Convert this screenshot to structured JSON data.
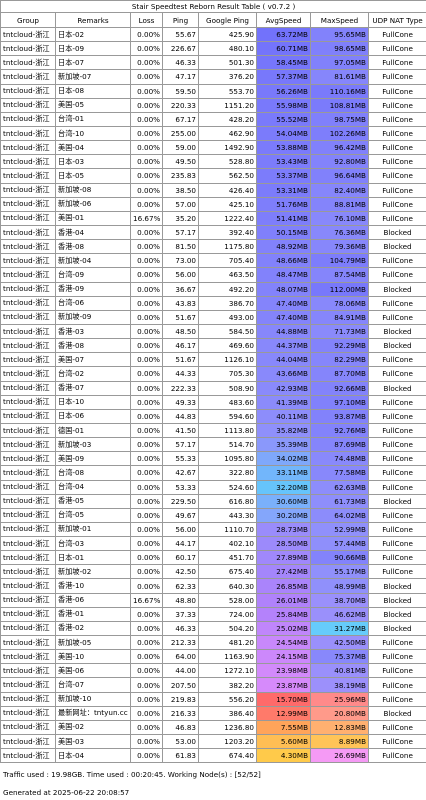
{
  "title": "Stair Speedtest Reborn Result Table ( v0.7.2 )",
  "table": {
    "header": [
      "Group",
      "Remarks",
      "Loss",
      "Ping",
      "Google Ping",
      "AvgSpeed",
      "MaxSpeed",
      "UDP NAT Type"
    ],
    "rows": [
      [
        "tntcloud-浙江",
        "日本-02",
        "0.00%",
        "55.67",
        "425.90",
        "63.72MB",
        "95.65MB",
        "FullCone"
      ],
      [
        "tntcloud-浙江",
        "日本-09",
        "0.00%",
        "226.67",
        "480.10",
        "60.71MB",
        "98.65MB",
        "FullCone"
      ],
      [
        "tntcloud-浙江",
        "日本-07",
        "0.00%",
        "46.33",
        "501.30",
        "58.45MB",
        "97.05MB",
        "FullCone"
      ],
      [
        "tntcloud-浙江",
        "新加坡-07",
        "0.00%",
        "47.17",
        "376.20",
        "57.37MB",
        "81.61MB",
        "FullCone"
      ],
      [
        "tntcloud-浙江",
        "日本-08",
        "0.00%",
        "59.50",
        "553.70",
        "56.26MB",
        "110.16MB",
        "FullCone"
      ],
      [
        "tntcloud-浙江",
        "美国-05",
        "0.00%",
        "220.33",
        "1151.20",
        "55.98MB",
        "108.81MB",
        "FullCone"
      ],
      [
        "tntcloud-浙江",
        "台湾-01",
        "0.00%",
        "67.17",
        "428.20",
        "55.52MB",
        "98.75MB",
        "FullCone"
      ],
      [
        "tntcloud-浙江",
        "台湾-10",
        "0.00%",
        "255.00",
        "462.90",
        "54.04MB",
        "102.26MB",
        "FullCone"
      ],
      [
        "tntcloud-浙江",
        "美国-04",
        "0.00%",
        "59.00",
        "1492.90",
        "53.88MB",
        "96.42MB",
        "FullCone"
      ],
      [
        "tntcloud-浙江",
        "日本-03",
        "0.00%",
        "49.50",
        "528.80",
        "53.43MB",
        "92.80MB",
        "FullCone"
      ],
      [
        "tntcloud-浙江",
        "日本-05",
        "0.00%",
        "235.83",
        "562.50",
        "53.37MB",
        "96.64MB",
        "FullCone"
      ],
      [
        "tntcloud-浙江",
        "新加坡-08",
        "0.00%",
        "38.50",
        "426.40",
        "53.31MB",
        "82.40MB",
        "FullCone"
      ],
      [
        "tntcloud-浙江",
        "新加坡-06",
        "0.00%",
        "57.00",
        "425.10",
        "51.76MB",
        "88.81MB",
        "FullCone"
      ],
      [
        "tntcloud-浙江",
        "美国-01",
        "16.67%",
        "35.20",
        "1222.40",
        "51.41MB",
        "76.10MB",
        "FullCone"
      ],
      [
        "tntcloud-浙江",
        "香港-04",
        "0.00%",
        "57.17",
        "392.40",
        "50.15MB",
        "76.36MB",
        "Blocked"
      ],
      [
        "tntcloud-浙江",
        "香港-08",
        "0.00%",
        "81.50",
        "1175.80",
        "48.92MB",
        "79.36MB",
        "Blocked"
      ],
      [
        "tntcloud-浙江",
        "新加坡-04",
        "0.00%",
        "73.00",
        "705.40",
        "48.66MB",
        "104.79MB",
        "FullCone"
      ],
      [
        "tntcloud-浙江",
        "台湾-09",
        "0.00%",
        "56.00",
        "463.50",
        "48.47MB",
        "87.54MB",
        "FullCone"
      ],
      [
        "tntcloud-浙江",
        "香港-09",
        "0.00%",
        "36.67",
        "492.20",
        "48.07MB",
        "112.00MB",
        "Blocked"
      ],
      [
        "tntcloud-浙江",
        "台湾-06",
        "0.00%",
        "43.83",
        "386.70",
        "47.40MB",
        "78.06MB",
        "FullCone"
      ],
      [
        "tntcloud-浙江",
        "新加坡-09",
        "0.00%",
        "51.67",
        "493.00",
        "47.40MB",
        "84.91MB",
        "FullCone"
      ],
      [
        "tntcloud-浙江",
        "香港-03",
        "0.00%",
        "48.50",
        "584.50",
        "44.88MB",
        "71.73MB",
        "Blocked"
      ],
      [
        "tntcloud-浙江",
        "香港-08",
        "0.00%",
        "46.17",
        "469.60",
        "44.37MB",
        "92.29MB",
        "Blocked"
      ],
      [
        "tntcloud-浙江",
        "美国-07",
        "0.00%",
        "51.67",
        "1126.10",
        "44.04MB",
        "82.29MB",
        "FullCone"
      ],
      [
        "tntcloud-浙江",
        "台湾-02",
        "0.00%",
        "44.33",
        "705.30",
        "43.66MB",
        "87.70MB",
        "FullCone"
      ],
      [
        "tntcloud-浙江",
        "香港-07",
        "0.00%",
        "222.33",
        "508.90",
        "42.93MB",
        "92.66MB",
        "Blocked"
      ],
      [
        "tntcloud-浙江",
        "日本-10",
        "0.00%",
        "49.33",
        "483.60",
        "41.39MB",
        "97.10MB",
        "FullCone"
      ],
      [
        "tntcloud-浙江",
        "日本-06",
        "0.00%",
        "44.83",
        "594.60",
        "40.11MB",
        "93.87MB",
        "FullCone"
      ],
      [
        "tntcloud-浙江",
        "德国-01",
        "0.00%",
        "41.50",
        "1113.80",
        "35.82MB",
        "92.76MB",
        "FullCone"
      ],
      [
        "tntcloud-浙江",
        "新加坡-03",
        "0.00%",
        "57.17",
        "514.70",
        "35.39MB",
        "87.69MB",
        "FullCone"
      ],
      [
        "tntcloud-浙江",
        "美国-09",
        "0.00%",
        "55.33",
        "1095.80",
        "34.02MB",
        "74.48MB",
        "FullCone"
      ],
      [
        "tntcloud-浙江",
        "台湾-08",
        "0.00%",
        "42.67",
        "322.80",
        "33.11MB",
        "77.58MB",
        "FullCone"
      ],
      [
        "tntcloud-浙江",
        "台湾-04",
        "0.00%",
        "53.33",
        "524.60",
        "32.20MB",
        "62.63MB",
        "FullCone"
      ],
      [
        "tntcloud-浙江",
        "香港-05",
        "0.00%",
        "229.50",
        "616.80",
        "30.60MB",
        "61.73MB",
        "Blocked"
      ],
      [
        "tntcloud-浙江",
        "台湾-05",
        "0.00%",
        "49.67",
        "443.30",
        "30.20MB",
        "64.02MB",
        "FullCone"
      ],
      [
        "tntcloud-浙江",
        "新加坡-01",
        "0.00%",
        "56.00",
        "1110.70",
        "28.73MB",
        "52.99MB",
        "FullCone"
      ],
      [
        "tntcloud-浙江",
        "台湾-03",
        "0.00%",
        "44.17",
        "402.10",
        "28.50MB",
        "57.44MB",
        "FullCone"
      ],
      [
        "tntcloud-浙江",
        "日本-01",
        "0.00%",
        "60.17",
        "451.70",
        "27.89MB",
        "90.66MB",
        "FullCone"
      ],
      [
        "tntcloud-浙江",
        "新加坡-02",
        "0.00%",
        "42.50",
        "675.40",
        "27.42MB",
        "55.17MB",
        "FullCone"
      ],
      [
        "tntcloud-浙江",
        "香港-10",
        "0.00%",
        "62.33",
        "640.30",
        "26.85MB",
        "48.99MB",
        "Blocked"
      ],
      [
        "tntcloud-浙江",
        "香港-06",
        "16.67%",
        "48.80",
        "528.00",
        "26.01MB",
        "38.70MB",
        "Blocked"
      ],
      [
        "tntcloud-浙江",
        "香港-01",
        "0.00%",
        "37.33",
        "724.00",
        "25.84MB",
        "46.62MB",
        "Blocked"
      ],
      [
        "tntcloud-浙江",
        "香港-02",
        "0.00%",
        "46.33",
        "504.20",
        "25.02MB",
        "31.27MB",
        "Blocked"
      ],
      [
        "tntcloud-浙江",
        "新加坡-05",
        "0.00%",
        "212.33",
        "481.20",
        "24.54MB",
        "42.50MB",
        "FullCone"
      ],
      [
        "tntcloud-浙江",
        "美国-10",
        "0.00%",
        "64.00",
        "1163.90",
        "24.15MB",
        "75.37MB",
        "FullCone"
      ],
      [
        "tntcloud-浙江",
        "美国-06",
        "0.00%",
        "44.00",
        "1272.10",
        "23.98MB",
        "40.81MB",
        "FullCone"
      ],
      [
        "tntcloud-浙江",
        "台湾-07",
        "0.00%",
        "207.50",
        "382.20",
        "23.87MB",
        "38.19MB",
        "FullCone"
      ],
      [
        "tntcloud-浙江",
        "新加坡-10",
        "0.00%",
        "219.83",
        "556.20",
        "15.70MB",
        "25.96MB",
        "FullCone"
      ],
      [
        "tntcloud-浙江",
        "最新网址：tntyun.cc",
        "0.00%",
        "216.33",
        "386.40",
        "12.99MB",
        "20.80MB",
        "Blocked"
      ],
      [
        "tntcloud-浙江",
        "美国-02",
        "0.00%",
        "46.83",
        "1236.80",
        "7.55MB",
        "12.83MB",
        "FullCone"
      ],
      [
        "tntcloud-浙江",
        "美国-03",
        "0.00%",
        "53.00",
        "1203.20",
        "5.60MB",
        "8.89MB",
        "FullCone"
      ],
      [
        "tntcloud-浙江",
        "日本-04",
        "0.00%",
        "61.83",
        "674.40",
        "4.30MB",
        "26.69MB",
        "FullCone"
      ]
    ],
    "avg_speed_colors": [
      "#7272fb",
      "#7474fb",
      "#7676fb",
      "#7878fb",
      "#7979fb",
      "#7979fb",
      "#7a7afb",
      "#7b7bfb",
      "#7b7bfb",
      "#7c7cfb",
      "#7c7cfb",
      "#7c7cfb",
      "#7e7efb",
      "#7e7efb",
      "#8080fb",
      "#8282fb",
      "#8282fb",
      "#8282fb",
      "#8383fb",
      "#8484fb",
      "#8484fb",
      "#8787fb",
      "#8888fb",
      "#8888fb",
      "#8989fb",
      "#8a8afb",
      "#8b8bfb",
      "#8d8dfb",
      "#8f90fb",
      "#8a98fb",
      "#7fa8fb",
      "#72b6fb",
      "#66c4fb",
      "#7ab0fb",
      "#84a6fb",
      "#9a8cfb",
      "#9c8afb",
      "#a088fb",
      "#a486fb",
      "#aa84fb",
      "#b082fb",
      "#b482fb",
      "#c086fb",
      "#c888fb",
      "#cc88fb",
      "#d28afb",
      "#d68afb",
      "#ff6a6a",
      "#ff7a6a",
      "#ffa45a",
      "#ffbe54",
      "#ffca4a"
    ],
    "max_speed_colors": [
      "#8282fb",
      "#8080fb",
      "#8181fb",
      "#8686fb",
      "#7a7afb",
      "#7b7bfb",
      "#8080fb",
      "#7e7efb",
      "#8181fb",
      "#8383fb",
      "#8181fb",
      "#8686fb",
      "#8484fb",
      "#8888fb",
      "#8888fb",
      "#8787fb",
      "#7d7dfb",
      "#8585fb",
      "#7878fb",
      "#8888fb",
      "#8686fb",
      "#8a8afb",
      "#8383fb",
      "#8686fb",
      "#8585fb",
      "#8383fb",
      "#8181fb",
      "#8282fb",
      "#8383fb",
      "#8585fb",
      "#8989fb",
      "#8888fb",
      "#8d8dfb",
      "#8e8efb",
      "#8c8cfb",
      "#9090fb",
      "#8f8ffb",
      "#8383fb",
      "#9090fb",
      "#9090fb",
      "#9a90fb",
      "#9a90fb",
      "#66ccfb",
      "#9a90fb",
      "#8888fb",
      "#9a90fb",
      "#9c90fb",
      "#ff8a8a",
      "#ff9a8a",
      "#ffb070",
      "#ffc458",
      "#f59af5"
    ]
  },
  "footer": {
    "traffic": "Traffic used : 19.98GB. Time used : 00:20:45. Working Node(s) : [52/52]",
    "generated": "Generated at 2025-06-22 20:08:57"
  }
}
